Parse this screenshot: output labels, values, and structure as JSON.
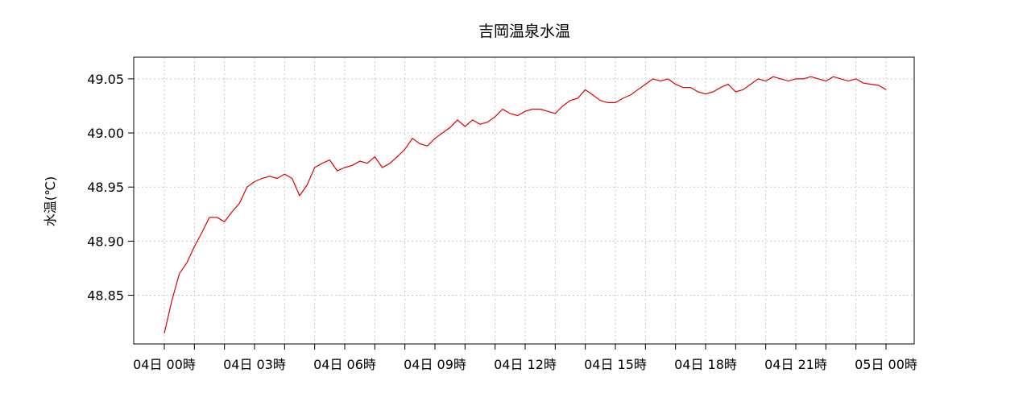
{
  "chart_data": {
    "type": "line",
    "title": "吉岡温泉水温",
    "xlabel": "",
    "ylabel": "水温(℃)",
    "ylim": [
      48.805,
      49.07
    ],
    "y_ticks": [
      48.85,
      48.9,
      48.95,
      49.0,
      49.05
    ],
    "y_tick_labels": [
      "48.85",
      "48.90",
      "48.95",
      "49.00",
      "49.05"
    ],
    "xlim": [
      0,
      24
    ],
    "x_ticks": [
      0,
      1,
      2,
      3,
      4,
      5,
      6,
      7,
      8,
      9,
      10,
      11,
      12,
      13,
      14,
      15,
      16,
      17,
      18,
      19,
      20,
      21,
      22,
      23,
      24
    ],
    "x_tick_labels": [
      {
        "x": 0,
        "label": "04日 00時"
      },
      {
        "x": 3,
        "label": "04日 03時"
      },
      {
        "x": 6,
        "label": "04日 06時"
      },
      {
        "x": 9,
        "label": "04日 09時"
      },
      {
        "x": 12,
        "label": "04日 12時"
      },
      {
        "x": 15,
        "label": "04日 15時"
      },
      {
        "x": 18,
        "label": "04日 18時"
      },
      {
        "x": 21,
        "label": "04日 21時"
      },
      {
        "x": 24,
        "label": "05日 00時"
      }
    ],
    "grid": true,
    "series": [
      {
        "color": "#e00000",
        "x": [
          0.0,
          0.25,
          0.5,
          0.75,
          1.0,
          1.25,
          1.5,
          1.75,
          2.0,
          2.25,
          2.5,
          2.75,
          3.0,
          3.25,
          3.5,
          3.75,
          4.0,
          4.25,
          4.5,
          4.75,
          5.0,
          5.25,
          5.5,
          5.75,
          6.0,
          6.25,
          6.5,
          6.75,
          7.0,
          7.25,
          7.5,
          7.75,
          8.0,
          8.25,
          8.5,
          8.75,
          9.0,
          9.25,
          9.5,
          9.75,
          10.0,
          10.25,
          10.5,
          10.75,
          11.0,
          11.25,
          11.5,
          11.75,
          12.0,
          12.25,
          12.5,
          12.75,
          13.0,
          13.25,
          13.5,
          13.75,
          14.0,
          14.25,
          14.5,
          14.75,
          15.0,
          15.25,
          15.5,
          15.75,
          16.0,
          16.25,
          16.5,
          16.75,
          17.0,
          17.25,
          17.5,
          17.75,
          18.0,
          18.25,
          18.5,
          18.75,
          19.0,
          19.25,
          19.5,
          19.75,
          20.0,
          20.25,
          20.5,
          20.75,
          21.0,
          21.25,
          21.5,
          21.75,
          22.0,
          22.25,
          22.5,
          22.75,
          23.0,
          23.25,
          23.5,
          23.75,
          24.0
        ],
        "values": [
          48.815,
          48.845,
          48.87,
          48.88,
          48.895,
          48.908,
          48.922,
          48.922,
          48.918,
          48.927,
          48.935,
          48.95,
          48.955,
          48.958,
          48.96,
          48.958,
          48.962,
          48.958,
          48.942,
          48.952,
          48.968,
          48.972,
          48.975,
          48.965,
          48.968,
          48.97,
          48.974,
          48.972,
          48.978,
          48.968,
          48.972,
          48.978,
          48.985,
          48.995,
          48.99,
          48.988,
          48.995,
          49.0,
          49.005,
          49.012,
          49.006,
          49.012,
          49.008,
          49.01,
          49.015,
          49.022,
          49.018,
          49.016,
          49.02,
          49.022,
          49.022,
          49.02,
          49.018,
          49.025,
          49.03,
          49.032,
          49.04,
          49.035,
          49.03,
          49.028,
          49.028,
          49.032,
          49.035,
          49.04,
          49.045,
          49.05,
          49.048,
          49.05,
          49.045,
          49.042,
          49.042,
          49.038,
          49.036,
          49.038,
          49.042,
          49.045,
          49.038,
          49.04,
          49.045,
          49.05,
          49.048,
          49.052,
          49.05,
          49.048,
          49.05,
          49.05,
          49.052,
          49.05,
          49.048,
          49.052,
          49.05,
          49.048,
          49.05,
          49.046,
          49.045,
          49.044,
          49.04
        ]
      }
    ]
  }
}
